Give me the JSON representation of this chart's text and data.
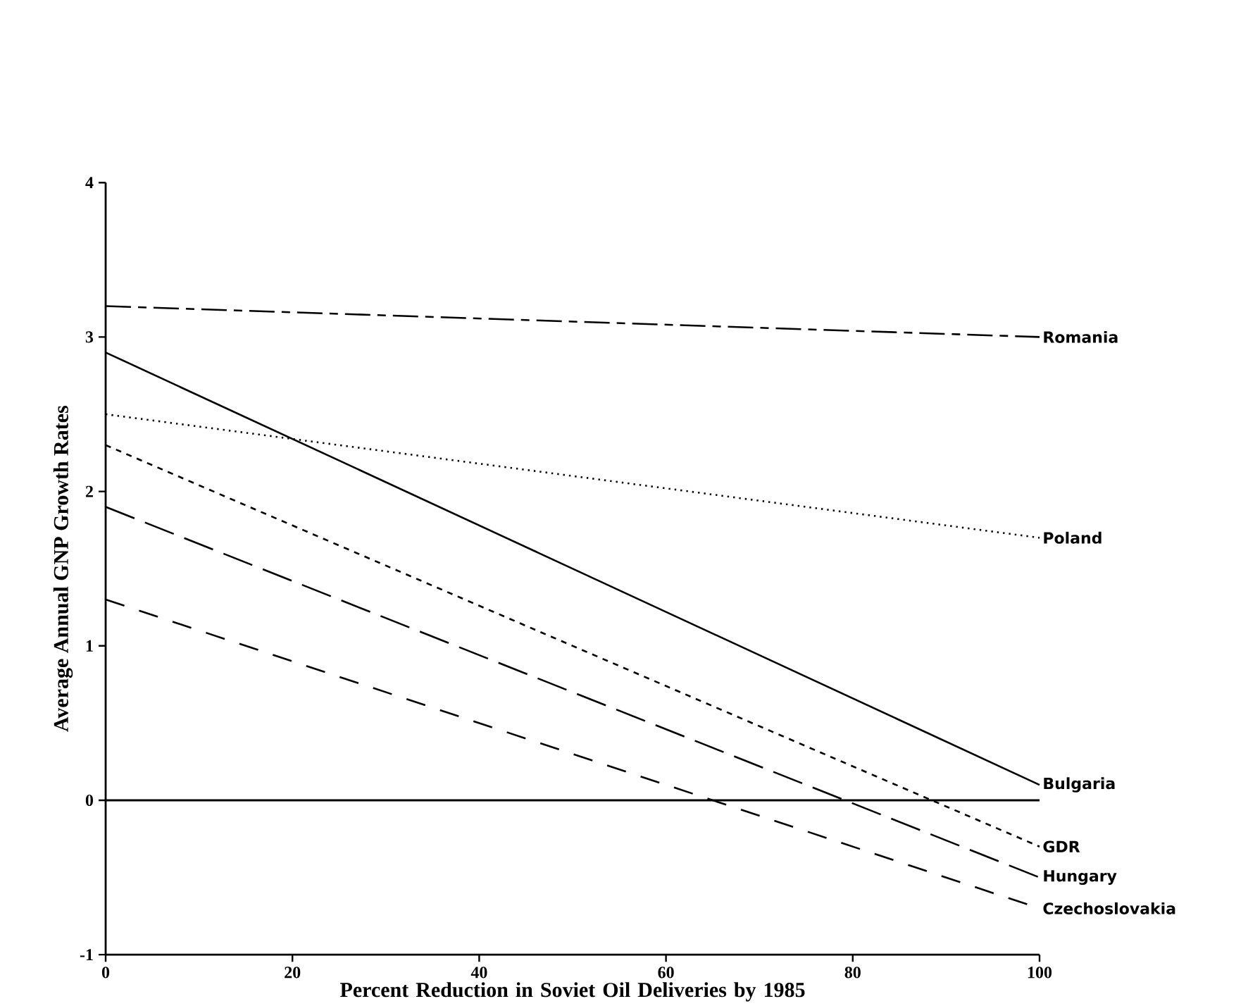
{
  "chart_data": {
    "type": "line",
    "xlabel": "Percent Reduction in Soviet Oil Deliveries by 1985",
    "ylabel": "Average Annual GNP Growth Rates",
    "x": [
      0,
      100
    ],
    "xlim": [
      0,
      100
    ],
    "xticks": [
      0,
      20,
      40,
      60,
      80,
      100
    ],
    "ylim": [
      -1,
      4
    ],
    "yticks": [
      -1,
      0,
      1,
      2,
      3,
      4
    ],
    "grid": false,
    "legend": false,
    "marker": "none",
    "ref_lines": [
      {
        "axis": "y",
        "value": 0,
        "color": "#000000",
        "line_style": "solid"
      }
    ],
    "series": [
      {
        "name": "Romania",
        "color": "#000000",
        "line_style": "dashdot",
        "values": [
          3.2,
          3.0
        ]
      },
      {
        "name": "Bulgaria",
        "color": "#000000",
        "line_style": "solid",
        "values": [
          2.9,
          0.1
        ]
      },
      {
        "name": "Poland",
        "color": "#000000",
        "line_style": "dotted",
        "values": [
          2.5,
          1.7
        ]
      },
      {
        "name": "GDR",
        "color": "#000000",
        "line_style": "dashed",
        "values": [
          2.3,
          -0.3
        ]
      },
      {
        "name": "Hungary",
        "color": "#000000",
        "line_style": "longdash",
        "values": [
          1.9,
          -0.5
        ]
      },
      {
        "name": "Czechoslovakia",
        "color": "#000000",
        "line_style": "loosedash",
        "values": [
          1.3,
          -0.7
        ]
      }
    ]
  }
}
